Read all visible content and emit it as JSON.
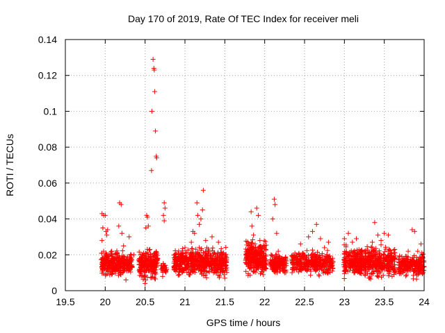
{
  "chart_data": {
    "type": "scatter",
    "title": "Day 170 of 2019, Rate Of TEC Index for receiver meli",
    "xlabel": "GPS time / hours",
    "ylabel": "ROTI / TECUs",
    "xlim": [
      19.5,
      24
    ],
    "ylim": [
      0,
      0.14
    ],
    "xticks": [
      "19.5",
      "20",
      "20.5",
      "21",
      "21.5",
      "22",
      "22.5",
      "23",
      "23.5",
      "24"
    ],
    "yticks": [
      "0",
      "0.02",
      "0.04",
      "0.06",
      "0.08",
      "0.1",
      "0.12",
      "0.14"
    ],
    "grid": true,
    "marker": "+",
    "marker_color": "#ff0000",
    "series": [
      {
        "name": "ROTI",
        "points": [
          [
            19.96,
            0.043
          ],
          [
            19.98,
            0.042
          ],
          [
            20.0,
            0.042
          ],
          [
            19.97,
            0.035
          ],
          [
            20.01,
            0.033
          ],
          [
            19.96,
            0.028
          ],
          [
            20.03,
            0.034
          ],
          [
            20.02,
            0.031
          ],
          [
            19.98,
            0.022
          ],
          [
            20.0,
            0.02
          ],
          [
            20.05,
            0.016
          ],
          [
            20.08,
            0.019
          ],
          [
            20.1,
            0.013
          ],
          [
            20.12,
            0.017
          ],
          [
            20.15,
            0.021
          ],
          [
            20.18,
            0.049
          ],
          [
            20.2,
            0.048
          ],
          [
            20.17,
            0.036
          ],
          [
            20.21,
            0.032
          ],
          [
            20.23,
            0.025
          ],
          [
            20.25,
            0.016
          ],
          [
            20.27,
            0.011
          ],
          [
            20.26,
            0.006
          ],
          [
            20.3,
            0.03
          ],
          [
            20.32,
            0.018
          ],
          [
            20.36,
            0.02
          ],
          [
            20.42,
            0.017
          ],
          [
            20.46,
            0.013
          ],
          [
            20.49,
            0.008
          ],
          [
            20.5,
            0.004
          ],
          [
            20.52,
            0.042
          ],
          [
            20.53,
            0.041
          ],
          [
            20.54,
            0.036
          ],
          [
            20.51,
            0.035
          ],
          [
            20.56,
            0.023
          ],
          [
            20.58,
            0.067
          ],
          [
            20.585,
            0.1
          ],
          [
            20.6,
            0.129
          ],
          [
            20.61,
            0.124
          ],
          [
            20.615,
            0.123
          ],
          [
            20.62,
            0.111
          ],
          [
            20.63,
            0.089
          ],
          [
            20.64,
            0.075
          ],
          [
            20.645,
            0.074
          ],
          [
            20.62,
            0.02
          ],
          [
            20.66,
            0.018
          ],
          [
            20.7,
            0.014
          ],
          [
            20.74,
            0.049
          ],
          [
            20.75,
            0.046
          ],
          [
            20.73,
            0.042
          ],
          [
            20.74,
            0.039
          ],
          [
            20.73,
            0.015
          ],
          [
            20.76,
            0.011
          ],
          [
            20.72,
            0.008
          ],
          [
            20.88,
            0.019
          ],
          [
            20.9,
            0.012
          ],
          [
            20.93,
            0.009
          ],
          [
            20.97,
            0.016
          ],
          [
            21.0,
            0.024
          ],
          [
            21.02,
            0.021
          ],
          [
            21.05,
            0.01
          ],
          [
            21.08,
            0.027
          ],
          [
            21.1,
            0.033
          ],
          [
            21.12,
            0.032
          ],
          [
            21.15,
            0.049
          ],
          [
            21.16,
            0.042
          ],
          [
            21.18,
            0.037
          ],
          [
            21.2,
            0.04
          ],
          [
            21.22,
            0.045
          ],
          [
            21.23,
            0.056
          ],
          [
            21.26,
            0.028
          ],
          [
            21.3,
            0.022
          ],
          [
            21.34,
            0.03
          ],
          [
            21.38,
            0.017
          ],
          [
            21.42,
            0.027
          ],
          [
            21.46,
            0.014
          ],
          [
            21.49,
            0.009
          ],
          [
            21.5,
            0.007
          ],
          [
            21.78,
            0.019
          ],
          [
            21.8,
            0.025
          ],
          [
            21.83,
            0.044
          ],
          [
            21.84,
            0.036
          ],
          [
            21.86,
            0.031
          ],
          [
            21.88,
            0.026
          ],
          [
            21.9,
            0.046
          ],
          [
            21.92,
            0.042
          ],
          [
            21.94,
            0.028
          ],
          [
            21.96,
            0.021
          ],
          [
            21.98,
            0.009
          ],
          [
            22.08,
            0.02
          ],
          [
            22.1,
            0.04
          ],
          [
            22.12,
            0.051
          ],
          [
            22.13,
            0.048
          ],
          [
            22.15,
            0.032
          ],
          [
            22.17,
            0.022
          ],
          [
            22.2,
            0.014
          ],
          [
            22.22,
            0.018
          ],
          [
            22.25,
            0.01
          ],
          [
            22.35,
            0.016
          ],
          [
            22.4,
            0.012
          ],
          [
            22.45,
            0.026
          ],
          [
            22.5,
            0.02
          ],
          [
            22.55,
            0.03
          ],
          [
            22.6,
            0.033
          ],
          [
            22.65,
            0.037
          ],
          [
            22.7,
            0.029
          ],
          [
            22.75,
            0.024
          ],
          [
            22.8,
            0.027
          ],
          [
            22.84,
            0.015
          ],
          [
            23.0,
            0.029
          ],
          [
            23.05,
            0.032
          ],
          [
            23.1,
            0.027
          ],
          [
            23.15,
            0.029
          ],
          [
            23.2,
            0.022
          ],
          [
            23.25,
            0.018
          ],
          [
            23.3,
            0.021
          ],
          [
            23.35,
            0.027
          ],
          [
            23.38,
            0.038
          ],
          [
            23.42,
            0.031
          ],
          [
            23.46,
            0.028
          ],
          [
            23.5,
            0.032
          ],
          [
            23.55,
            0.031
          ],
          [
            23.6,
            0.017
          ],
          [
            23.65,
            0.01
          ],
          [
            23.7,
            0.013
          ],
          [
            23.75,
            0.011
          ],
          [
            23.8,
            0.022
          ],
          [
            23.85,
            0.034
          ],
          [
            23.88,
            0.033
          ],
          [
            23.92,
            0.022
          ],
          [
            23.96,
            0.026
          ],
          [
            23.98,
            0.019
          ]
        ]
      }
    ],
    "clusters": [
      {
        "x": [
          19.95,
          20.34
        ],
        "y": [
          0.006,
          0.024
        ],
        "count": 340
      },
      {
        "x": [
          20.42,
          20.66
        ],
        "y": [
          0.004,
          0.025
        ],
        "count": 230
      },
      {
        "x": [
          20.7,
          20.77
        ],
        "y": [
          0.008,
          0.017
        ],
        "count": 25
      },
      {
        "x": [
          20.86,
          21.53
        ],
        "y": [
          0.006,
          0.026
        ],
        "count": 560
      },
      {
        "x": [
          21.76,
          22.02
        ],
        "y": [
          0.006,
          0.03
        ],
        "count": 300
      },
      {
        "x": [
          22.07,
          22.27
        ],
        "y": [
          0.008,
          0.022
        ],
        "count": 160
      },
      {
        "x": [
          22.34,
          22.86
        ],
        "y": [
          0.007,
          0.024
        ],
        "count": 360
      },
      {
        "x": [
          22.99,
          23.64
        ],
        "y": [
          0.005,
          0.027
        ],
        "count": 560
      },
      {
        "x": [
          23.68,
          24.0
        ],
        "y": [
          0.006,
          0.022
        ],
        "count": 230
      }
    ]
  }
}
